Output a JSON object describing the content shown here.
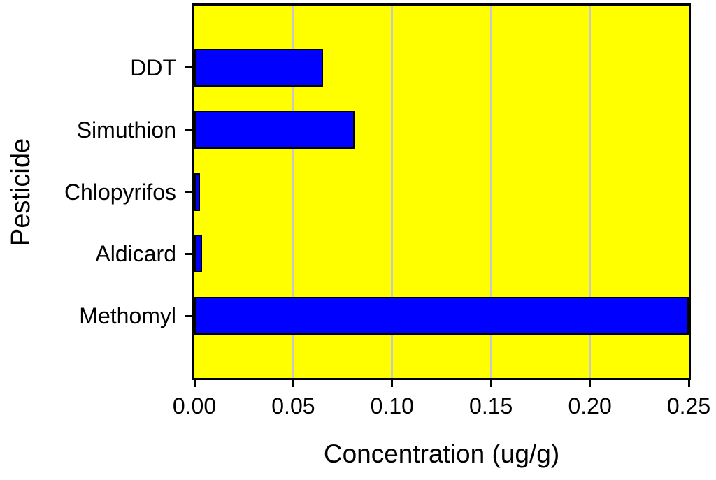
{
  "chart_data": {
    "type": "bar",
    "orientation": "horizontal",
    "title": "",
    "categories": [
      "DDT",
      "Simuthion",
      "Chlopyrifos",
      "Aldicard",
      "Methomyl"
    ],
    "values": [
      0.065,
      0.081,
      0.003,
      0.004,
      0.25
    ],
    "xlabel": "Concentration (ug/g)",
    "ylabel": "Pesticide",
    "xlim": [
      0,
      0.25
    ],
    "x_ticks": [
      0,
      0.05,
      0.1,
      0.15,
      0.2,
      0.25
    ],
    "x_tick_labels": [
      "0.00",
      "0.05",
      "0.10",
      "0.15",
      "0.20",
      "0.25"
    ],
    "grid": "vertical-major-gridlines",
    "legend": "none",
    "colors": {
      "plot_background": "#FFFF00",
      "bar_fill": "#0000FF",
      "bar_border": "#000000",
      "gridline": "#C8C8C8",
      "axis_frame": "#000000",
      "tick": "#000000",
      "text": "#000000",
      "page_background": "#FFFFFF"
    }
  }
}
